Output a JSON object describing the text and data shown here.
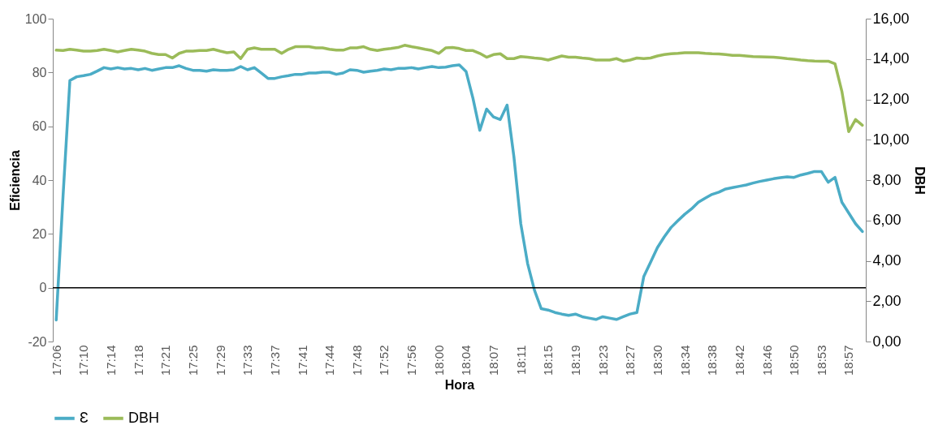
{
  "chart_data": {
    "type": "line",
    "xlabel": "Hora",
    "ylabel": "Eficiencia",
    "y2label": "DBH",
    "categories": [
      "17:06",
      null,
      null,
      null,
      "17:10",
      null,
      null,
      null,
      "17:14",
      null,
      null,
      null,
      "17:18",
      null,
      null,
      null,
      "17:21",
      null,
      null,
      null,
      "17:25",
      null,
      null,
      null,
      "17:29",
      null,
      null,
      null,
      "17:33",
      null,
      null,
      null,
      "17:37",
      null,
      null,
      null,
      "17:41",
      null,
      null,
      null,
      "17:44",
      null,
      null,
      null,
      "17:48",
      null,
      null,
      null,
      "17:52",
      null,
      null,
      null,
      "17:56",
      null,
      null,
      null,
      "18:00",
      null,
      null,
      null,
      "18:04",
      null,
      null,
      null,
      "18:07",
      null,
      null,
      null,
      "18:11",
      null,
      null,
      null,
      "18:15",
      null,
      null,
      null,
      "18:19",
      null,
      null,
      null,
      "18:23",
      null,
      null,
      null,
      "18:27",
      null,
      null,
      null,
      "18:30",
      null,
      null,
      null,
      "18:34",
      null,
      null,
      null,
      "18:38",
      null,
      null,
      null,
      "18:42",
      null,
      null,
      null,
      "18:46",
      null,
      null,
      null,
      "18:50",
      null,
      null,
      null,
      "18:53",
      null,
      null,
      null,
      "18:57",
      null,
      null
    ],
    "series": [
      {
        "name": "Ɛ",
        "color": "#4bacc6",
        "axis": "y",
        "values": [
          -12,
          34,
          77,
          78.4,
          78.8,
          79.3,
          80.5,
          81.8,
          81.3,
          81.8,
          81.3,
          81.5,
          81,
          81.5,
          80.8,
          81.3,
          81.8,
          81.8,
          82.5,
          81.5,
          80.8,
          80.8,
          80.5,
          81,
          80.8,
          80.8,
          81,
          82.2,
          81,
          81.8,
          79.8,
          77.8,
          77.8,
          78.4,
          78.8,
          79.3,
          79.3,
          79.8,
          79.8,
          80.1,
          80.1,
          79.3,
          79.8,
          81,
          80.8,
          80.1,
          80.5,
          80.8,
          81.3,
          81,
          81.5,
          81.5,
          81.8,
          81.3,
          81.8,
          82.2,
          81.8,
          82,
          82.5,
          82.8,
          80.3,
          70.4,
          58.5,
          66.4,
          63.5,
          62.5,
          67.9,
          48.6,
          23.8,
          9,
          -0.9,
          -7.8,
          -8.3,
          -9.2,
          -9.8,
          -10.3,
          -9.8,
          -10.8,
          -11.3,
          -11.8,
          -10.8,
          -11.3,
          -11.8,
          -10.8,
          -9.8,
          -9.2,
          4.1,
          9.5,
          14.9,
          18.9,
          22.4,
          24.9,
          27.3,
          29.3,
          31.8,
          33.3,
          34.7,
          35.5,
          36.7,
          37.2,
          37.7,
          38.2,
          38.9,
          39.5,
          40,
          40.5,
          40.9,
          41.2,
          41,
          41.9,
          42.5,
          43.2,
          43.2,
          39.2,
          41,
          31.8,
          27.8,
          23.8,
          20.9
        ]
      },
      {
        "name": "DBH",
        "color": "#9bbb59",
        "axis": "y2",
        "values": [
          14.44,
          14.42,
          14.48,
          14.44,
          14.39,
          14.39,
          14.42,
          14.48,
          14.42,
          14.35,
          14.42,
          14.48,
          14.44,
          14.39,
          14.28,
          14.22,
          14.22,
          14.05,
          14.28,
          14.39,
          14.39,
          14.42,
          14.42,
          14.48,
          14.39,
          14.31,
          14.35,
          14.02,
          14.48,
          14.55,
          14.48,
          14.48,
          14.48,
          14.28,
          14.48,
          14.61,
          14.61,
          14.61,
          14.55,
          14.55,
          14.48,
          14.44,
          14.44,
          14.55,
          14.55,
          14.61,
          14.48,
          14.42,
          14.48,
          14.52,
          14.57,
          14.68,
          14.61,
          14.55,
          14.48,
          14.42,
          14.28,
          14.55,
          14.57,
          14.52,
          14.42,
          14.42,
          14.28,
          14.09,
          14.22,
          14.26,
          14.02,
          14.02,
          14.12,
          14.09,
          14.05,
          14.02,
          13.95,
          14.05,
          14.15,
          14.09,
          14.09,
          14.05,
          14.02,
          13.95,
          13.95,
          13.95,
          14.02,
          13.89,
          13.95,
          14.05,
          14.02,
          14.05,
          14.15,
          14.22,
          14.26,
          14.28,
          14.31,
          14.31,
          14.31,
          14.28,
          14.26,
          14.25,
          14.22,
          14.18,
          14.18,
          14.15,
          14.12,
          14.11,
          14.1,
          14.09,
          14.06,
          14.02,
          13.99,
          13.95,
          13.92,
          13.9,
          13.89,
          13.89,
          13.76,
          12.4,
          10.4,
          11.0,
          10.72
        ]
      }
    ],
    "ylim": [
      -20,
      100
    ],
    "yticks": [
      -20,
      0,
      20,
      40,
      60,
      80,
      100
    ],
    "y2lim": [
      0,
      16
    ],
    "y2ticks": [
      {
        "value": 0,
        "label": "0,00"
      },
      {
        "value": 2,
        "label": "2,00"
      },
      {
        "value": 4,
        "label": "4,00"
      },
      {
        "value": 6,
        "label": "6,00"
      },
      {
        "value": 8,
        "label": "8,00"
      },
      {
        "value": 10,
        "label": "10,00"
      },
      {
        "value": 12,
        "label": "12,00"
      },
      {
        "value": 14,
        "label": "14,00"
      },
      {
        "value": 16,
        "label": "16,00"
      }
    ],
    "ref_lines": [
      {
        "axis": "y",
        "value": 0,
        "color": "#000000"
      }
    ],
    "grid": false,
    "legend": "bottom"
  }
}
